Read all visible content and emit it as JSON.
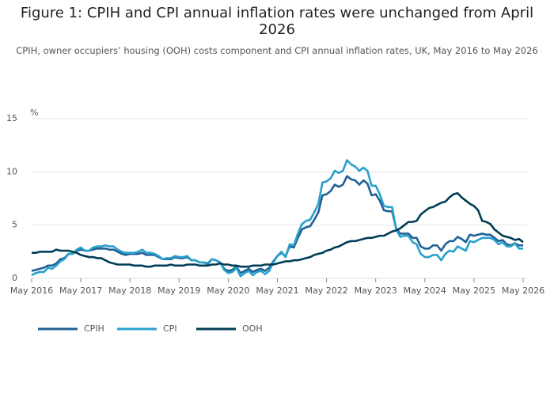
{
  "chart_data": {
    "type": "line",
    "title": "Figure 1: CPIH and CPI annual inflation rates were unchanged from April 2026",
    "subtitle": "CPIH, owner occupiers’ housing (OOH) costs component and CPI annual inflation rates, UK, May 2016 to May 2026",
    "y_label": "%",
    "x": [
      "2016-05",
      "2016-06",
      "2016-07",
      "2016-08",
      "2016-09",
      "2016-10",
      "2016-11",
      "2016-12",
      "2017-01",
      "2017-02",
      "2017-03",
      "2017-04",
      "2017-05",
      "2017-06",
      "2017-07",
      "2017-08",
      "2017-09",
      "2017-10",
      "2017-11",
      "2017-12",
      "2018-01",
      "2018-02",
      "2018-03",
      "2018-04",
      "2018-05",
      "2018-06",
      "2018-07",
      "2018-08",
      "2018-09",
      "2018-10",
      "2018-11",
      "2018-12",
      "2019-01",
      "2019-02",
      "2019-03",
      "2019-04",
      "2019-05",
      "2019-06",
      "2019-07",
      "2019-08",
      "2019-09",
      "2019-10",
      "2019-11",
      "2019-12",
      "2020-01",
      "2020-02",
      "2020-03",
      "2020-04",
      "2020-05",
      "2020-06",
      "2020-07",
      "2020-08",
      "2020-09",
      "2020-10",
      "2020-11",
      "2020-12",
      "2021-01",
      "2021-02",
      "2021-03",
      "2021-04",
      "2021-05",
      "2021-06",
      "2021-07",
      "2021-08",
      "2021-09",
      "2021-10",
      "2021-11",
      "2021-12",
      "2022-01",
      "2022-02",
      "2022-03",
      "2022-04",
      "2022-05",
      "2022-06",
      "2022-07",
      "2022-08",
      "2022-09",
      "2022-10",
      "2022-11",
      "2022-12",
      "2023-01",
      "2023-02",
      "2023-03",
      "2023-04",
      "2023-05",
      "2023-06",
      "2023-07",
      "2023-08",
      "2023-09",
      "2023-10",
      "2023-11",
      "2023-12",
      "2024-01",
      "2024-02",
      "2024-03",
      "2024-04",
      "2024-05",
      "2024-06",
      "2024-07",
      "2024-08",
      "2024-09",
      "2024-10",
      "2024-11",
      "2024-12",
      "2025-01",
      "2025-02",
      "2025-03",
      "2025-04",
      "2025-05",
      "2025-06",
      "2025-07",
      "2025-08",
      "2025-09",
      "2025-10",
      "2025-11",
      "2025-12",
      "2026-01",
      "2026-02",
      "2026-03",
      "2026-04",
      "2026-05"
    ],
    "series": [
      {
        "name": "CPIH",
        "color": "#206095",
        "values": [
          0.7,
          0.8,
          0.9,
          1.0,
          1.2,
          1.2,
          1.4,
          1.8,
          1.9,
          2.3,
          2.3,
          2.6,
          2.7,
          2.6,
          2.6,
          2.7,
          2.8,
          2.8,
          2.8,
          2.7,
          2.7,
          2.5,
          2.3,
          2.2,
          2.3,
          2.3,
          2.3,
          2.4,
          2.2,
          2.2,
          2.2,
          2.0,
          1.8,
          1.8,
          1.8,
          2.0,
          1.9,
          1.9,
          2.0,
          1.7,
          1.7,
          1.5,
          1.5,
          1.4,
          1.8,
          1.7,
          1.5,
          0.9,
          0.7,
          0.8,
          1.1,
          0.5,
          0.7,
          0.9,
          0.6,
          0.8,
          0.9,
          0.7,
          1.0,
          1.6,
          2.1,
          2.4,
          2.1,
          3.0,
          2.9,
          3.8,
          4.6,
          4.8,
          4.9,
          5.5,
          6.2,
          7.8,
          7.9,
          8.2,
          8.8,
          8.6,
          8.8,
          9.6,
          9.3,
          9.2,
          8.8,
          9.2,
          8.9,
          7.8,
          7.9,
          7.3,
          6.4,
          6.3,
          6.3,
          4.7,
          4.2,
          4.2,
          4.2,
          3.8,
          3.8,
          3.0,
          2.8,
          2.8,
          3.1,
          3.1,
          2.6,
          3.2,
          3.5,
          3.5,
          3.9,
          3.7,
          3.4,
          4.1,
          4.0,
          4.1,
          4.2,
          4.1,
          4.1,
          3.8,
          3.5,
          3.6,
          3.2,
          3.1,
          3.3,
          3.1,
          3.1
        ]
      },
      {
        "name": "CPI",
        "color": "#27a0cc",
        "values": [
          0.3,
          0.5,
          0.6,
          0.6,
          1.0,
          0.9,
          1.2,
          1.6,
          1.8,
          2.3,
          2.3,
          2.7,
          2.9,
          2.6,
          2.6,
          2.9,
          3.0,
          3.0,
          3.1,
          3.0,
          3.0,
          2.7,
          2.5,
          2.4,
          2.4,
          2.4,
          2.5,
          2.7,
          2.4,
          2.4,
          2.3,
          2.1,
          1.8,
          1.9,
          1.9,
          2.1,
          2.0,
          2.0,
          2.1,
          1.7,
          1.7,
          1.5,
          1.5,
          1.3,
          1.8,
          1.7,
          1.5,
          0.8,
          0.5,
          0.6,
          1.0,
          0.2,
          0.5,
          0.7,
          0.3,
          0.6,
          0.7,
          0.4,
          0.7,
          1.5,
          2.1,
          2.5,
          2.0,
          3.2,
          3.1,
          4.2,
          5.1,
          5.4,
          5.5,
          6.2,
          7.0,
          9.0,
          9.1,
          9.4,
          10.1,
          9.9,
          10.1,
          11.1,
          10.7,
          10.5,
          10.1,
          10.4,
          10.1,
          8.7,
          8.7,
          7.9,
          6.8,
          6.7,
          6.7,
          4.6,
          3.9,
          4.0,
          4.0,
          3.4,
          3.2,
          2.3,
          2.0,
          2.0,
          2.2,
          2.2,
          1.7,
          2.3,
          2.6,
          2.5,
          3.0,
          2.8,
          2.6,
          3.5,
          3.4,
          3.6,
          3.8,
          3.8,
          3.8,
          3.6,
          3.2,
          3.4,
          3.0,
          3.0,
          3.3,
          2.8,
          2.8
        ]
      },
      {
        "name": "OOH",
        "color": "#003c57",
        "values": [
          2.4,
          2.4,
          2.5,
          2.5,
          2.5,
          2.5,
          2.7,
          2.6,
          2.6,
          2.6,
          2.5,
          2.4,
          2.2,
          2.1,
          2.0,
          2.0,
          1.9,
          1.9,
          1.7,
          1.5,
          1.4,
          1.3,
          1.3,
          1.3,
          1.3,
          1.2,
          1.2,
          1.2,
          1.1,
          1.1,
          1.2,
          1.2,
          1.2,
          1.2,
          1.3,
          1.2,
          1.2,
          1.2,
          1.3,
          1.3,
          1.3,
          1.2,
          1.2,
          1.2,
          1.3,
          1.3,
          1.4,
          1.3,
          1.3,
          1.2,
          1.2,
          1.1,
          1.1,
          1.1,
          1.2,
          1.2,
          1.2,
          1.3,
          1.3,
          1.3,
          1.4,
          1.5,
          1.6,
          1.6,
          1.7,
          1.7,
          1.8,
          1.9,
          2.0,
          2.2,
          2.3,
          2.4,
          2.6,
          2.7,
          2.9,
          3.0,
          3.2,
          3.4,
          3.5,
          3.5,
          3.6,
          3.7,
          3.8,
          3.8,
          3.9,
          4.0,
          4.0,
          4.2,
          4.4,
          4.5,
          4.7,
          5.0,
          5.3,
          5.3,
          5.4,
          6.0,
          6.3,
          6.6,
          6.7,
          6.9,
          7.1,
          7.2,
          7.6,
          7.9,
          8.0,
          7.6,
          7.3,
          7.0,
          6.8,
          6.4,
          5.4,
          5.3,
          5.1,
          4.6,
          4.3,
          4.0,
          3.9,
          3.8,
          3.6,
          3.7,
          3.4
        ]
      }
    ],
    "xlim": [
      "2016-05",
      "2026-05"
    ],
    "xticks": [
      {
        "value": "2016-05",
        "label": "May 2016"
      },
      {
        "value": "2017-05",
        "label": "May 2017"
      },
      {
        "value": "2018-05",
        "label": "May 2018"
      },
      {
        "value": "2019-05",
        "label": "May 2019"
      },
      {
        "value": "2020-05",
        "label": "May 2020"
      },
      {
        "value": "2021-05",
        "label": "May 2021"
      },
      {
        "value": "2022-05",
        "label": "May 2022"
      },
      {
        "value": "2023-05",
        "label": "May 2023"
      },
      {
        "value": "2024-05",
        "label": "May 2024"
      },
      {
        "value": "2025-05",
        "label": "May 2025"
      },
      {
        "value": "2026-05",
        "label": "May 2026"
      }
    ],
    "ylim": [
      0,
      15
    ],
    "yticks": [
      0,
      5,
      10,
      15
    ],
    "grid": true
  }
}
